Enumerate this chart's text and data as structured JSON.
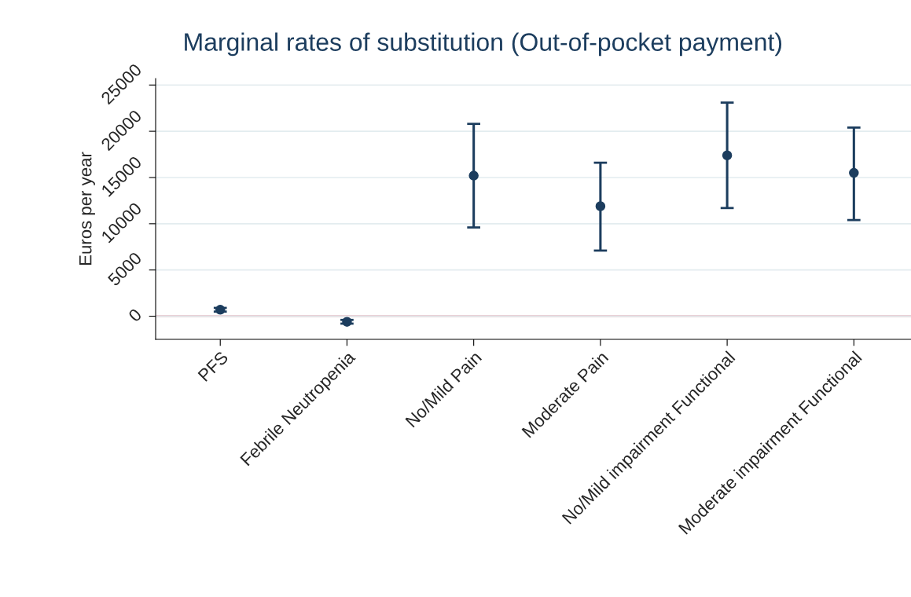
{
  "chart_data": {
    "type": "scatter",
    "title": "Marginal rates of substitution (Out-of-pocket payment)",
    "ylabel": "Euros per year",
    "categories": [
      "PFS",
      "Febrile Neutropenia",
      "No/Mild Pain",
      "Moderate Pain",
      "No/Mild impairment Functional",
      "Moderate impairment Functional"
    ],
    "values": [
      700,
      -600,
      15200,
      11900,
      17400,
      15500
    ],
    "errors": [
      [
        500,
        900
      ],
      [
        -800,
        -400
      ],
      [
        9600,
        20800
      ],
      [
        7100,
        16600
      ],
      [
        11700,
        23100
      ],
      [
        10400,
        20400
      ]
    ],
    "color": "#1c3d5e",
    "marker": "circle",
    "ylim": [
      -2500,
      25700
    ],
    "yticks": [
      0,
      5000,
      10000,
      15000,
      20000,
      25000
    ],
    "grid": "y",
    "ref_lines": [
      {
        "axis": "y",
        "value": 0,
        "color": "#b0233a"
      }
    ]
  }
}
